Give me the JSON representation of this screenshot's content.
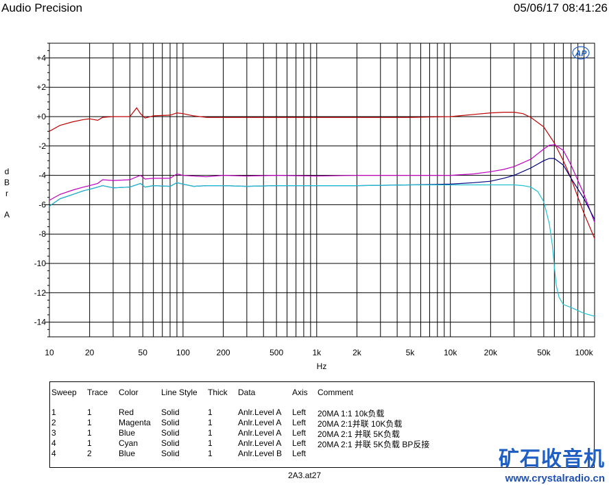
{
  "header": {
    "title": "Audio Precision",
    "timestamp": "05/06/17 08:41:26"
  },
  "logo": {
    "text": "AP"
  },
  "footer": {
    "filename": "2A3.at27"
  },
  "watermark": {
    "name_cn": "矿石收音机",
    "url": "www.crystalradio.cn"
  },
  "legend": {
    "headers": [
      "Sweep",
      "Trace",
      "Color",
      "Line Style",
      "Thick",
      "Data",
      "Axis",
      "Comment"
    ],
    "rows": [
      [
        "1",
        "1",
        "Red",
        "Solid",
        "1",
        "Anlr.Level A",
        "Left",
        "20MA 1:1 10k负载"
      ],
      [
        "2",
        "1",
        "Magenta",
        "Solid",
        "1",
        "Anlr.Level A",
        "Left",
        "20MA 2:1并联 10K负载"
      ],
      [
        "3",
        "1",
        "Blue",
        "Solid",
        "1",
        "Anlr.Level A",
        "Left",
        "20MA 2:1 并联 5K负载"
      ],
      [
        "4",
        "1",
        "Cyan",
        "Solid",
        "1",
        "Anlr.Level A",
        "Left",
        "20MA 2:1 并联 5K负载 BP反接"
      ],
      [
        "4",
        "2",
        "Blue",
        "Solid",
        "1",
        "Anlr.Level B",
        "Left",
        ""
      ]
    ]
  },
  "chart_data": {
    "type": "line",
    "xscale": "log",
    "xlim": [
      10,
      120000
    ],
    "ylim": [
      -15,
      5
    ],
    "xlabel": "Hz",
    "ylabel": "dBr A",
    "grid": true,
    "xticks": [
      10,
      20,
      50,
      100,
      200,
      500,
      1000,
      2000,
      5000,
      10000,
      20000,
      50000,
      100000
    ],
    "xticklabels": [
      "10",
      "20",
      "50",
      "100",
      "200",
      "500",
      "1k",
      "2k",
      "5k",
      "10k",
      "20k",
      "50k",
      "100k"
    ],
    "yticks": [
      4,
      2,
      0,
      -2,
      -4,
      -6,
      -8,
      -10,
      -12,
      -14
    ],
    "yticklabels": [
      "+4",
      "+2",
      "+0",
      "-2",
      "-4",
      "-6",
      "-8",
      "-10",
      "-12",
      "-14"
    ],
    "series": [
      {
        "name": "Red",
        "color": "#c00000",
        "x": [
          10,
          12,
          15,
          18,
          20,
          23,
          25,
          30,
          40,
          45,
          48,
          52,
          60,
          80,
          90,
          100,
          120,
          150,
          200,
          300,
          500,
          1000,
          2000,
          5000,
          10000,
          15000,
          20000,
          25000,
          30000,
          35000,
          40000,
          50000,
          60000,
          70000,
          80000,
          90000,
          100000,
          120000
        ],
        "y": [
          -1.0,
          -0.6,
          -0.35,
          -0.2,
          -0.15,
          -0.25,
          -0.05,
          0.0,
          0.0,
          0.6,
          0.2,
          -0.1,
          0.05,
          0.1,
          0.25,
          0.2,
          0.05,
          -0.05,
          -0.05,
          -0.05,
          -0.05,
          -0.05,
          -0.05,
          -0.05,
          0.0,
          0.15,
          0.25,
          0.3,
          0.3,
          0.2,
          -0.05,
          -0.7,
          -1.8,
          -3.0,
          -4.2,
          -5.5,
          -6.6,
          -8.3
        ]
      },
      {
        "name": "Magenta",
        "color": "#c000c0",
        "x": [
          10,
          12,
          15,
          18,
          20,
          23,
          25,
          30,
          40,
          48,
          52,
          60,
          80,
          90,
          100,
          120,
          150,
          200,
          300,
          500,
          1000,
          2000,
          5000,
          10000,
          15000,
          20000,
          25000,
          30000,
          40000,
          50000,
          55000,
          60000,
          70000,
          80000,
          100000,
          120000
        ],
        "y": [
          -5.7,
          -5.3,
          -5.0,
          -4.8,
          -4.7,
          -4.55,
          -4.3,
          -4.35,
          -4.3,
          -4.0,
          -4.25,
          -4.2,
          -4.2,
          -3.9,
          -4.0,
          -4.05,
          -4.1,
          -4.0,
          -4.05,
          -4.0,
          -4.05,
          -4.0,
          -4.0,
          -4.0,
          -3.9,
          -3.75,
          -3.6,
          -3.4,
          -2.9,
          -2.2,
          -1.95,
          -1.9,
          -2.3,
          -3.3,
          -5.3,
          -7.2
        ]
      },
      {
        "name": "Blue",
        "color": "#000080",
        "x": [
          10,
          12,
          15,
          18,
          20,
          23,
          25,
          30,
          40,
          48,
          52,
          60,
          80,
          90,
          100,
          120,
          150,
          200,
          300,
          500,
          1000,
          2000,
          5000,
          10000,
          15000,
          20000,
          25000,
          30000,
          40000,
          50000,
          55000,
          60000,
          70000,
          80000,
          100000,
          120000
        ],
        "y": [
          -6.1,
          -5.6,
          -5.3,
          -5.05,
          -4.95,
          -4.8,
          -4.7,
          -4.85,
          -4.8,
          -4.55,
          -4.8,
          -4.7,
          -4.75,
          -4.5,
          -4.6,
          -4.75,
          -4.7,
          -4.7,
          -4.75,
          -4.7,
          -4.7,
          -4.7,
          -4.65,
          -4.6,
          -4.5,
          -4.4,
          -4.2,
          -4.0,
          -3.5,
          -3.0,
          -2.85,
          -2.85,
          -3.3,
          -4.2,
          -5.6,
          -7.0
        ]
      },
      {
        "name": "Cyan",
        "color": "#20c0d0",
        "x": [
          10,
          12,
          15,
          18,
          20,
          23,
          25,
          30,
          40,
          48,
          52,
          60,
          80,
          90,
          100,
          120,
          150,
          200,
          300,
          500,
          1000,
          2000,
          5000,
          10000,
          20000,
          30000,
          35000,
          40000,
          45000,
          50000,
          55000,
          58000,
          60000,
          62000,
          65000,
          70000,
          80000,
          100000,
          120000
        ],
        "y": [
          -6.1,
          -5.6,
          -5.3,
          -5.05,
          -4.95,
          -4.8,
          -4.7,
          -4.85,
          -4.8,
          -4.55,
          -4.8,
          -4.7,
          -4.75,
          -4.5,
          -4.6,
          -4.75,
          -4.7,
          -4.7,
          -4.75,
          -4.7,
          -4.7,
          -4.7,
          -4.65,
          -4.65,
          -4.65,
          -4.65,
          -4.7,
          -4.8,
          -5.1,
          -5.8,
          -7.3,
          -8.8,
          -10.2,
          -11.5,
          -12.3,
          -12.8,
          -13.0,
          -13.4,
          -13.6
        ]
      }
    ]
  }
}
